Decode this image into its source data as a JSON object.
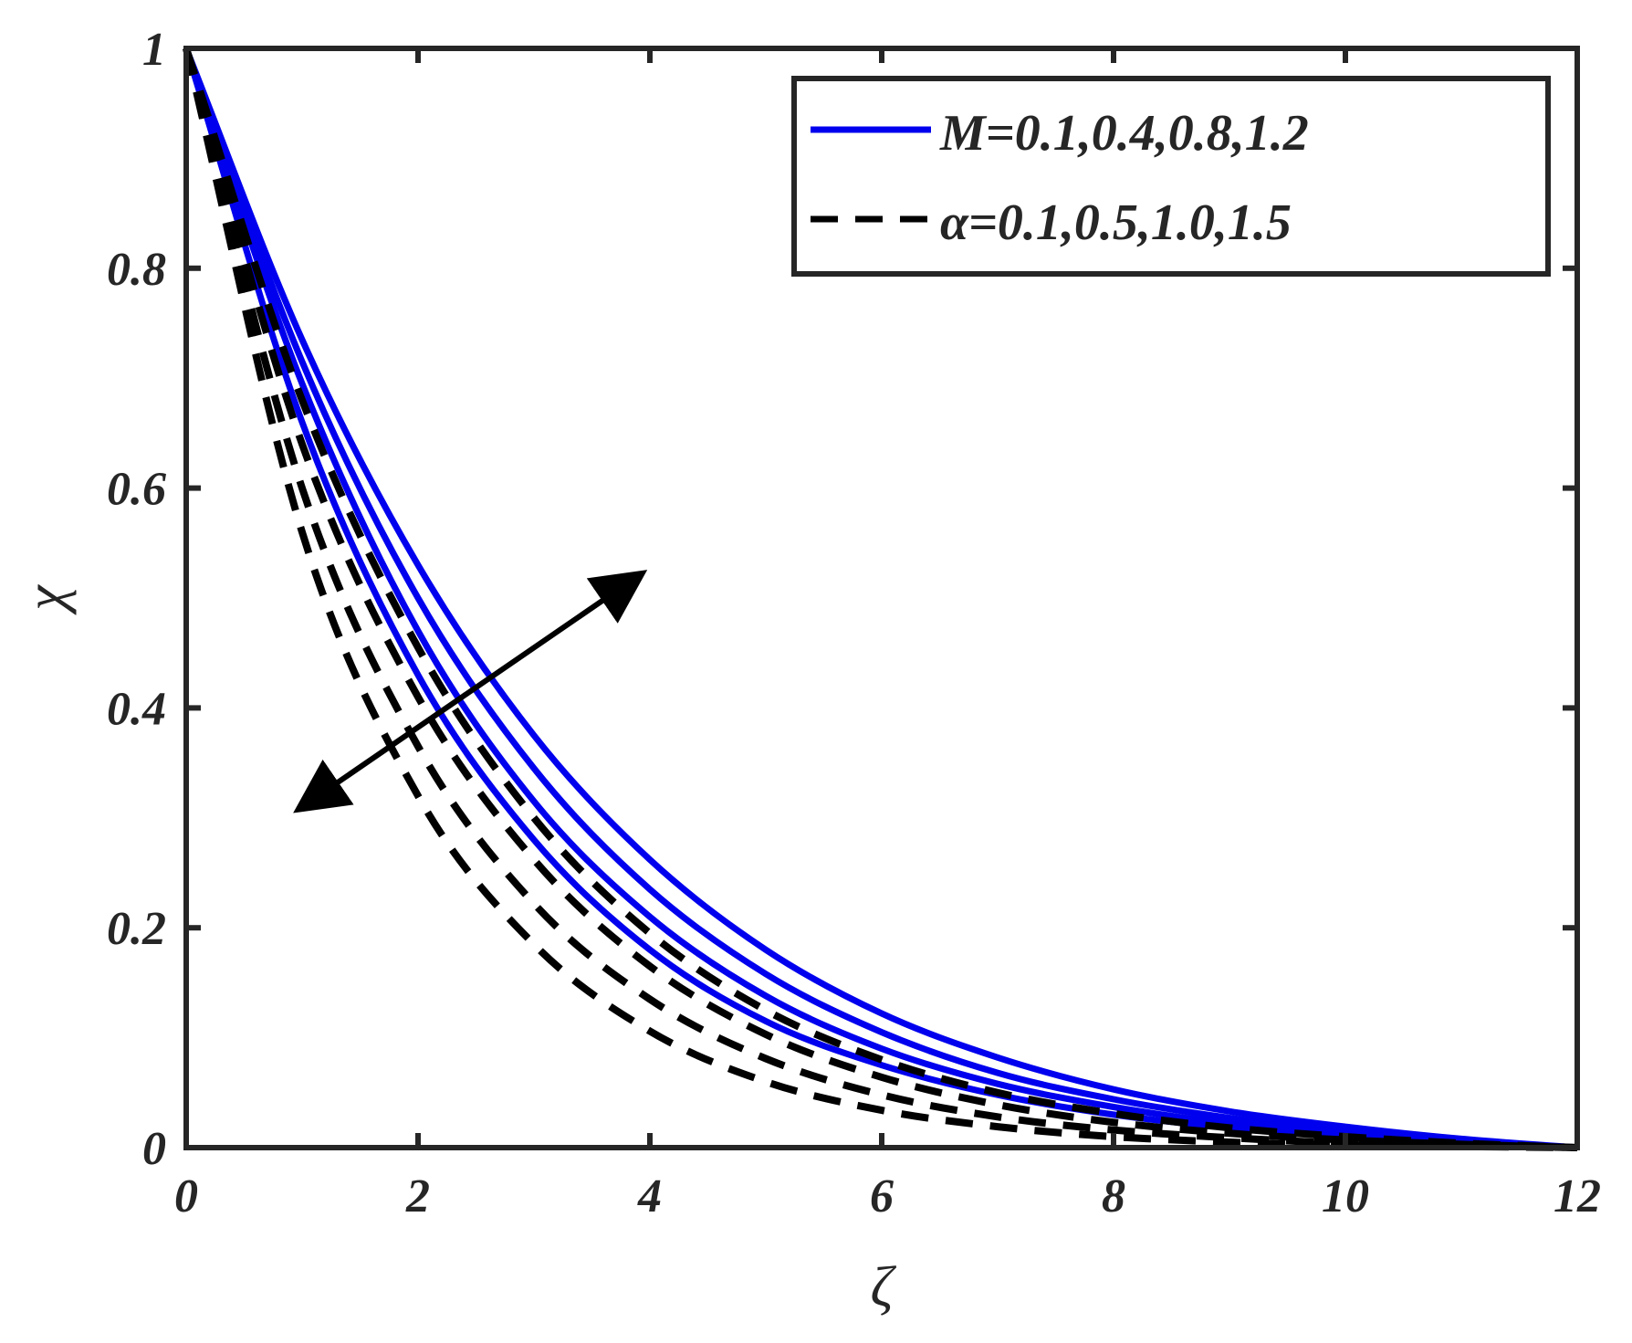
{
  "chart_data": {
    "type": "line",
    "xlabel": "ζ",
    "ylabel": "χ",
    "xlim": [
      0,
      12
    ],
    "ylim": [
      0,
      1
    ],
    "xticks": [
      "0",
      "2",
      "4",
      "6",
      "8",
      "10",
      "12"
    ],
    "yticks": [
      "0",
      "0.2",
      "0.4",
      "0.6",
      "0.8",
      "1"
    ],
    "grid": false,
    "legend_position": "top-right",
    "legend": [
      {
        "label": "M=0.1,0.4,0.8,1.2",
        "style": "solid",
        "color": "#0000ee"
      },
      {
        "label": "α=0.1,0.5,1.0,1.5",
        "style": "dashed",
        "color": "#000000"
      }
    ],
    "x": [
      0,
      1,
      2,
      3,
      4,
      5,
      6,
      7,
      8,
      9,
      10,
      11,
      12
    ],
    "series": [
      {
        "group": "M",
        "color": "#0000ee",
        "style": "solid",
        "values": [
          1.0,
          0.66,
          0.43,
          0.28,
          0.18,
          0.115,
          0.075,
          0.048,
          0.03,
          0.018,
          0.01,
          0.004,
          0.0
        ]
      },
      {
        "group": "M",
        "color": "#0000ee",
        "style": "solid",
        "values": [
          1.0,
          0.695,
          0.47,
          0.315,
          0.21,
          0.138,
          0.09,
          0.058,
          0.037,
          0.022,
          0.012,
          0.005,
          0.0
        ]
      },
      {
        "group": "M",
        "color": "#0000ee",
        "style": "solid",
        "values": [
          1.0,
          0.715,
          0.5,
          0.345,
          0.235,
          0.158,
          0.105,
          0.068,
          0.044,
          0.027,
          0.015,
          0.006,
          0.0
        ]
      },
      {
        "group": "M",
        "color": "#0000ee",
        "style": "solid",
        "values": [
          1.0,
          0.735,
          0.53,
          0.375,
          0.262,
          0.18,
          0.122,
          0.082,
          0.053,
          0.033,
          0.019,
          0.008,
          0.0
        ]
      },
      {
        "group": "α",
        "color": "#000000",
        "style": "dashed",
        "values": [
          1.0,
          0.68,
          0.455,
          0.3,
          0.195,
          0.125,
          0.08,
          0.05,
          0.031,
          0.018,
          0.01,
          0.004,
          0.0
        ]
      },
      {
        "group": "α",
        "color": "#000000",
        "style": "dashed",
        "values": [
          1.0,
          0.64,
          0.41,
          0.262,
          0.165,
          0.103,
          0.064,
          0.039,
          0.023,
          0.013,
          0.007,
          0.003,
          0.0
        ]
      },
      {
        "group": "α",
        "color": "#000000",
        "style": "dashed",
        "values": [
          1.0,
          0.6,
          0.365,
          0.222,
          0.135,
          0.081,
          0.048,
          0.028,
          0.016,
          0.009,
          0.004,
          0.002,
          0.0
        ]
      },
      {
        "group": "α",
        "color": "#000000",
        "style": "dashed",
        "values": [
          1.0,
          0.56,
          0.32,
          0.185,
          0.106,
          0.06,
          0.034,
          0.019,
          0.01,
          0.005,
          0.002,
          0.001,
          0.0
        ]
      }
    ],
    "annotations": [
      {
        "type": "double-arrow",
        "from": [
          1.0,
          0.31
        ],
        "to": [
          3.9,
          0.52
        ]
      }
    ]
  }
}
